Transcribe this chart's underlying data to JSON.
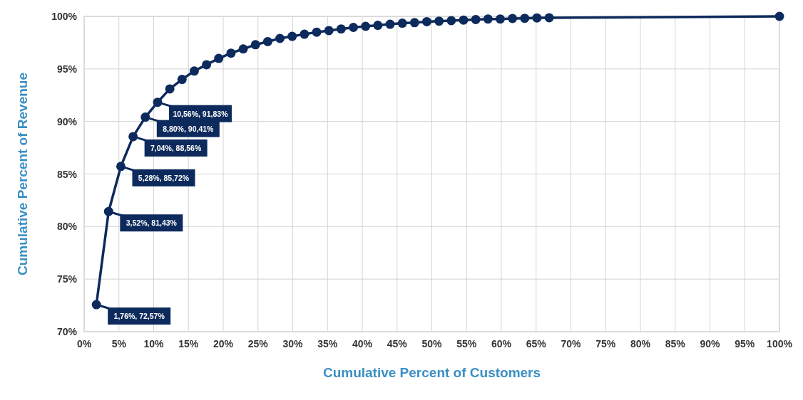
{
  "chart_data": {
    "type": "line",
    "xlabel": "Cumulative Percent of Customers",
    "ylabel": "Cumulative Percent of Revenue",
    "xlim": [
      0,
      100
    ],
    "ylim": [
      70,
      100
    ],
    "xticks": [
      {
        "value": 0,
        "label": "0%"
      },
      {
        "value": 5,
        "label": "5%"
      },
      {
        "value": 10,
        "label": "10%"
      },
      {
        "value": 15,
        "label": "15%"
      },
      {
        "value": 20,
        "label": "20%"
      },
      {
        "value": 25,
        "label": "25%"
      },
      {
        "value": 30,
        "label": "30%"
      },
      {
        "value": 35,
        "label": "35%"
      },
      {
        "value": 40,
        "label": "40%"
      },
      {
        "value": 45,
        "label": "45%"
      },
      {
        "value": 50,
        "label": "50%"
      },
      {
        "value": 55,
        "label": "55%"
      },
      {
        "value": 60,
        "label": "60%"
      },
      {
        "value": 65,
        "label": "65%"
      },
      {
        "value": 70,
        "label": "70%"
      },
      {
        "value": 75,
        "label": "75%"
      },
      {
        "value": 80,
        "label": "80%"
      },
      {
        "value": 85,
        "label": "85%"
      },
      {
        "value": 90,
        "label": "90%"
      },
      {
        "value": 95,
        "label": "95%"
      },
      {
        "value": 100,
        "label": "100%"
      }
    ],
    "yticks": [
      {
        "value": 70,
        "label": "70%"
      },
      {
        "value": 75,
        "label": "75%"
      },
      {
        "value": 80,
        "label": "80%"
      },
      {
        "value": 85,
        "label": "85%"
      },
      {
        "value": 90,
        "label": "90%"
      },
      {
        "value": 95,
        "label": "95%"
      },
      {
        "value": 100,
        "label": "100%"
      }
    ],
    "grid": true,
    "marker": "circle",
    "x": [
      1.76,
      3.52,
      5.28,
      7.04,
      8.8,
      10.56,
      12.32,
      14.08,
      15.84,
      17.6,
      19.36,
      21.12,
      22.88,
      24.64,
      26.4,
      28.16,
      29.92,
      31.68,
      33.44,
      35.2,
      36.96,
      38.72,
      40.48,
      42.24,
      44,
      45.76,
      47.52,
      49.28,
      51.04,
      52.8,
      54.56,
      56.32,
      58.08,
      59.84,
      61.6,
      63.36,
      65.12,
      66.88,
      100
    ],
    "series": [
      {
        "color": "#0d2a5c",
        "values": [
          72.57,
          81.43,
          85.72,
          88.56,
          90.41,
          91.83,
          93.1,
          94,
          94.8,
          95.4,
          96,
          96.5,
          96.9,
          97.3,
          97.6,
          97.9,
          98.1,
          98.3,
          98.5,
          98.65,
          98.8,
          98.95,
          99.05,
          99.15,
          99.25,
          99.35,
          99.4,
          99.5,
          99.55,
          99.6,
          99.65,
          99.7,
          99.75,
          99.75,
          99.8,
          99.82,
          99.85,
          99.87,
          100
        ],
        "value_labels": [
          "1,76%, 72,57%",
          "3,52%, 81,43%",
          "5,28%, 85,72%",
          "7,04%, 88,56%",
          "8,80%, 90,41%",
          "10,56%, 91,83%",
          null,
          null,
          null,
          null,
          null,
          null,
          null,
          null,
          null,
          null,
          null,
          null,
          null,
          null,
          null,
          null,
          null,
          null,
          null,
          null,
          null,
          null,
          null,
          null,
          null,
          null,
          null,
          null,
          null,
          null,
          null,
          null,
          null
        ]
      }
    ]
  }
}
